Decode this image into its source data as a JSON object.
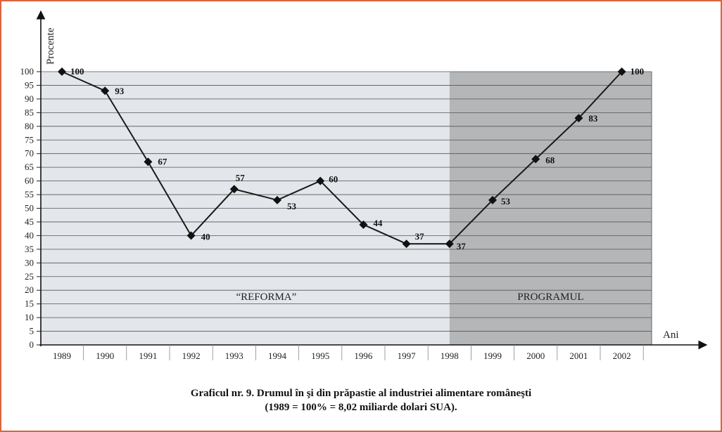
{
  "chart_data": {
    "type": "line",
    "title": "",
    "xlabel": "Ani",
    "ylabel": "Procente",
    "ylim": [
      0,
      100
    ],
    "y_ticks": [
      0,
      5,
      10,
      15,
      20,
      25,
      30,
      35,
      40,
      45,
      50,
      55,
      60,
      65,
      70,
      75,
      80,
      85,
      90,
      95,
      100
    ],
    "categories": [
      "1989",
      "1990",
      "1991",
      "1992",
      "1993",
      "1994",
      "1995",
      "1996",
      "1997",
      "1998",
      "1999",
      "2000",
      "2001",
      "2002"
    ],
    "series": [
      {
        "values": [
          100,
          93,
          67,
          40,
          57,
          53,
          60,
          44,
          37,
          37,
          53,
          68,
          83,
          100
        ]
      }
    ],
    "data_labels": [
      "100",
      "93",
      "67",
      "40",
      "57",
      "53",
      "60",
      "44",
      "37",
      "37",
      "53",
      "68",
      "83",
      "100"
    ],
    "regions": [
      {
        "label": "“REFORMA”",
        "from": "1989",
        "to": "1998",
        "color": "#e3e6ea"
      },
      {
        "label": "PROGRAMUL",
        "from": "1998",
        "to": "2002",
        "color": "#b5b6b8"
      }
    ],
    "grid": true,
    "line_color": "#1a1a1a",
    "marker": "diamond"
  },
  "caption": {
    "line1": "Graficul nr. 9. Drumul în şi din prăpastie al industriei alimentare româneşti",
    "line2": "(1989 = 100% = 8,02 miliarde dolari SUA)."
  }
}
